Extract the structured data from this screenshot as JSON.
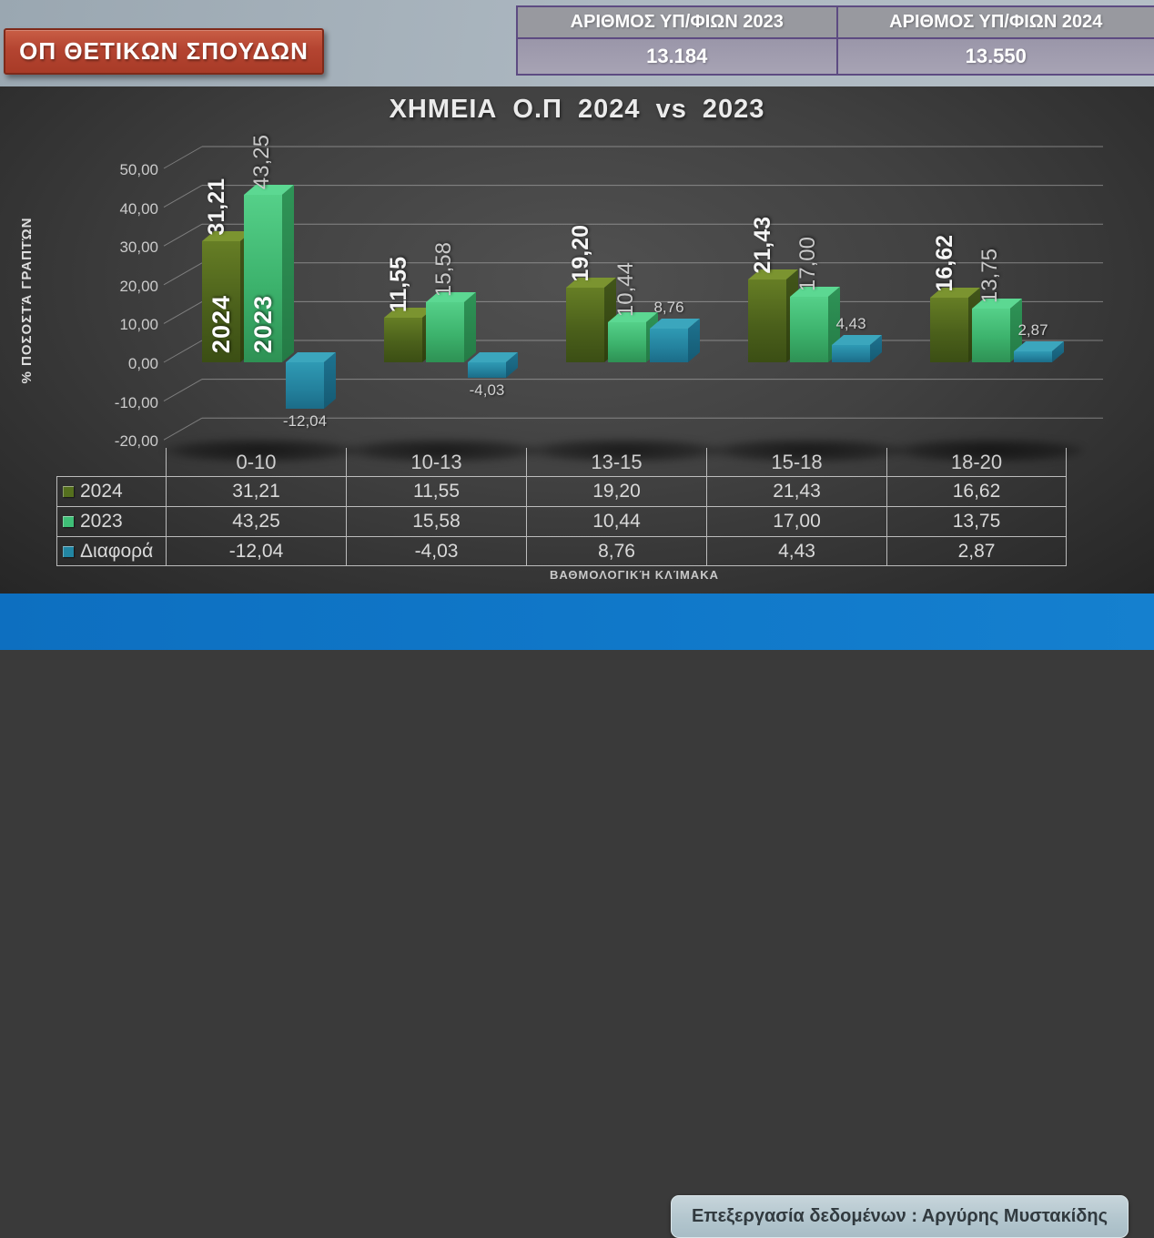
{
  "header": {
    "badge": "ΟΠ ΘΕΤΙΚΩΝ ΣΠΟΥΔΩΝ",
    "candidates": [
      {
        "label": "ΑΡΙΘΜΟΣ ΥΠ/ΦΙΩΝ 2023",
        "value": "13.184"
      },
      {
        "label": "ΑΡΙΘΜΟΣ ΥΠ/ΦΙΩΝ 2024",
        "value": "13.550"
      }
    ]
  },
  "chart_data": {
    "type": "bar",
    "title": "ΧΗΜΕΙΑ Ο.Π 2024 vs 2023",
    "xlabel": "ΒΑΘΜΟΛΟΓΙΚΉ ΚΛΊΜΑΚΑ",
    "ylabel": "% ΠΟΣΟΣΤΆ ΓΡΑΠΤΏΝ",
    "categories": [
      "0-10",
      "10-13",
      "13-15",
      "15-18",
      "18-20"
    ],
    "series": [
      {
        "name": "2024",
        "color": "#55701e",
        "values": [
          31.21,
          11.55,
          19.2,
          21.43,
          16.62
        ],
        "labels": [
          "31,21",
          "11,55",
          "19,20",
          "21,43",
          "16,62"
        ],
        "face_top": "#7b9430",
        "face_front": "linear-gradient(180deg,#667e25 0%,#4b601b 55%,#3b4e14 100%)",
        "face_side": "linear-gradient(180deg,#42561a 0%,#2f3f0e 100%)"
      },
      {
        "name": "2023",
        "color": "#3fbf77",
        "values": [
          43.25,
          15.58,
          10.44,
          17.0,
          13.75
        ],
        "labels": [
          "43,25",
          "15,58",
          "10,44",
          "17,00",
          "13,75"
        ],
        "face_top": "#5cd892",
        "face_front": "linear-gradient(180deg,#55d089 0%,#3cb26c 55%,#2e9154 100%)",
        "face_side": "linear-gradient(180deg,#2f9457 0%,#247a45 100%)"
      },
      {
        "name": "Διαφορά",
        "color": "#2286a3",
        "values": [
          -12.04,
          -4.03,
          8.76,
          4.43,
          2.87
        ],
        "labels": [
          "-12,04",
          "-4,03",
          "8,76",
          "4,43",
          "2,87"
        ],
        "face_top": "#3ba6bd",
        "face_front": "linear-gradient(180deg,#2f9ab4 0%,#23809c 60%,#1b6c88 100%)",
        "face_side": "linear-gradient(180deg,#1e7390 0%,#155a73 100%)"
      }
    ],
    "ylim": [
      -20,
      50
    ],
    "yticks": [
      {
        "v": 50,
        "label": "50,00"
      },
      {
        "v": 40,
        "label": "40,00"
      },
      {
        "v": 30,
        "label": "30,00"
      },
      {
        "v": 20,
        "label": "20,00"
      },
      {
        "v": 10,
        "label": "10,00"
      },
      {
        "v": 0,
        "label": "0,00"
      },
      {
        "v": -10,
        "label": "-10,00"
      },
      {
        "v": -20,
        "label": "-20,00"
      }
    ],
    "grid": true,
    "legend_position": "table-left"
  },
  "footer": {
    "credit": "Επεξεργασία δεδομένων : Αργύρης Μυστακίδης"
  }
}
